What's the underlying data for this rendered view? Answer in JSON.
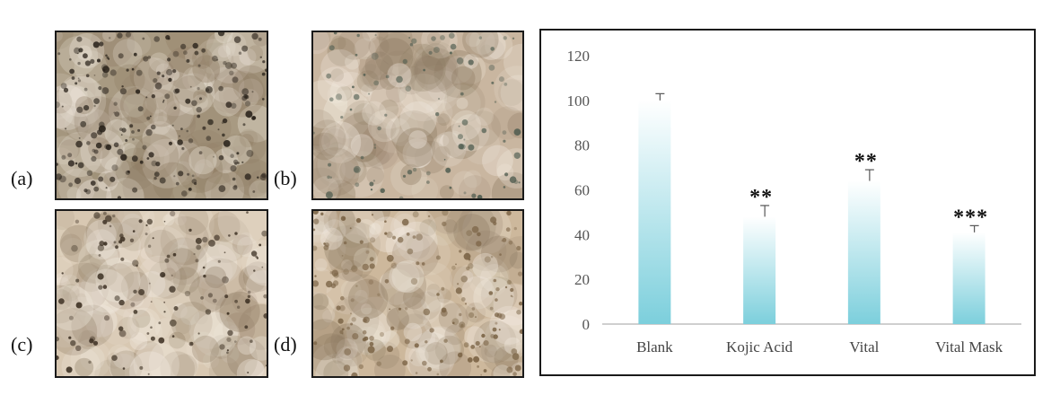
{
  "panels": [
    {
      "label": "(a)",
      "tone": "#a89a82",
      "dark": "#2b241c",
      "density": 0.9,
      "seed": 11
    },
    {
      "label": "(b)",
      "tone": "#c9b6a0",
      "dark": "#4c5a4e",
      "density": 0.35,
      "seed": 29
    },
    {
      "label": "(c)",
      "tone": "#d8c8b2",
      "dark": "#3b2f22",
      "density": 0.5,
      "seed": 47
    },
    {
      "label": "(d)",
      "tone": "#cdb89c",
      "dark": "#7a6345",
      "density": 0.7,
      "seed": 83
    }
  ],
  "chart_data": {
    "type": "bar",
    "categories": [
      "Blank",
      "Kojic Acid",
      "Vital",
      "Vital Mask"
    ],
    "values": [
      100,
      48,
      64,
      41
    ],
    "errors": [
      3,
      5,
      5,
      3
    ],
    "significance": [
      "",
      "**",
      "**",
      "***"
    ],
    "ylim": [
      0,
      120
    ],
    "yticks": [
      0,
      20,
      40,
      60,
      80,
      100,
      120
    ],
    "title": "",
    "xlabel": "",
    "ylabel": "",
    "grid": false,
    "colors": {
      "bar_top": "#ffffff",
      "bar_bottom": "#7ccfdc",
      "axis": "#bfbfbf"
    }
  }
}
